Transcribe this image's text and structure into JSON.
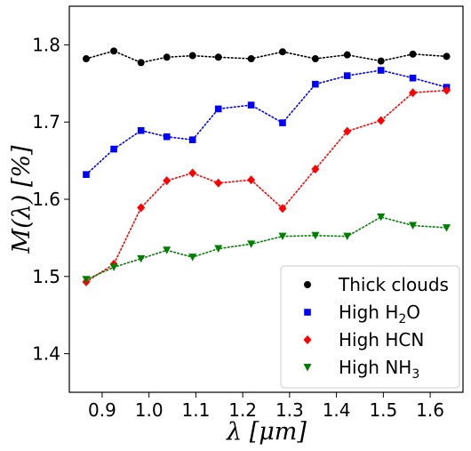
{
  "chart_data": {
    "type": "line",
    "xlabel": "λ [μm]",
    "ylabel": "M(λ) [%]",
    "xlim": [
      0.83,
      1.67
    ],
    "ylim": [
      1.35,
      1.85
    ],
    "xticks": [
      0.9,
      1.0,
      1.1,
      1.2,
      1.3,
      1.4,
      1.5,
      1.6
    ],
    "yticks": [
      1.4,
      1.5,
      1.6,
      1.7,
      1.8
    ],
    "xtick_labels": [
      "0.9",
      "1.0",
      "1.1",
      "1.2",
      "1.3",
      "1.4",
      "1.5",
      "1.6"
    ],
    "ytick_labels": [
      "1.4",
      "1.5",
      "1.6",
      "1.7",
      "1.8"
    ],
    "legend_position": "bottom-right",
    "grid": false,
    "x": [
      0.866,
      0.925,
      0.983,
      1.038,
      1.093,
      1.148,
      1.218,
      1.285,
      1.355,
      1.423,
      1.495,
      1.563,
      1.635
    ],
    "series": [
      {
        "name": "Thick clouds",
        "marker": "circle",
        "color": "#000000",
        "values": [
          1.782,
          1.792,
          1.777,
          1.784,
          1.786,
          1.784,
          1.782,
          1.791,
          1.782,
          1.787,
          1.779,
          1.788,
          1.785
        ]
      },
      {
        "name": "High H2O",
        "marker": "square",
        "color": "#0000ff",
        "values": [
          1.632,
          1.665,
          1.689,
          1.681,
          1.677,
          1.717,
          1.722,
          1.699,
          1.749,
          1.76,
          1.767,
          1.757,
          1.745
        ]
      },
      {
        "name": "High HCN",
        "marker": "diamond",
        "color": "#ff0000",
        "values": [
          1.493,
          1.516,
          1.589,
          1.624,
          1.634,
          1.621,
          1.625,
          1.588,
          1.639,
          1.688,
          1.702,
          1.738,
          1.741
        ]
      },
      {
        "name": "High NH3",
        "marker": "triangle-down",
        "color": "#008000",
        "values": [
          1.496,
          1.512,
          1.523,
          1.534,
          1.525,
          1.536,
          1.542,
          1.552,
          1.553,
          1.552,
          1.577,
          1.566,
          1.563
        ]
      }
    ]
  },
  "legend": {
    "entries": [
      {
        "main": "Thick clouds",
        "sub": "",
        "tail": ""
      },
      {
        "main": "High H",
        "sub": "2",
        "tail": "O"
      },
      {
        "main": "High HCN",
        "sub": "",
        "tail": ""
      },
      {
        "main": "High NH",
        "sub": "3",
        "tail": ""
      }
    ]
  }
}
